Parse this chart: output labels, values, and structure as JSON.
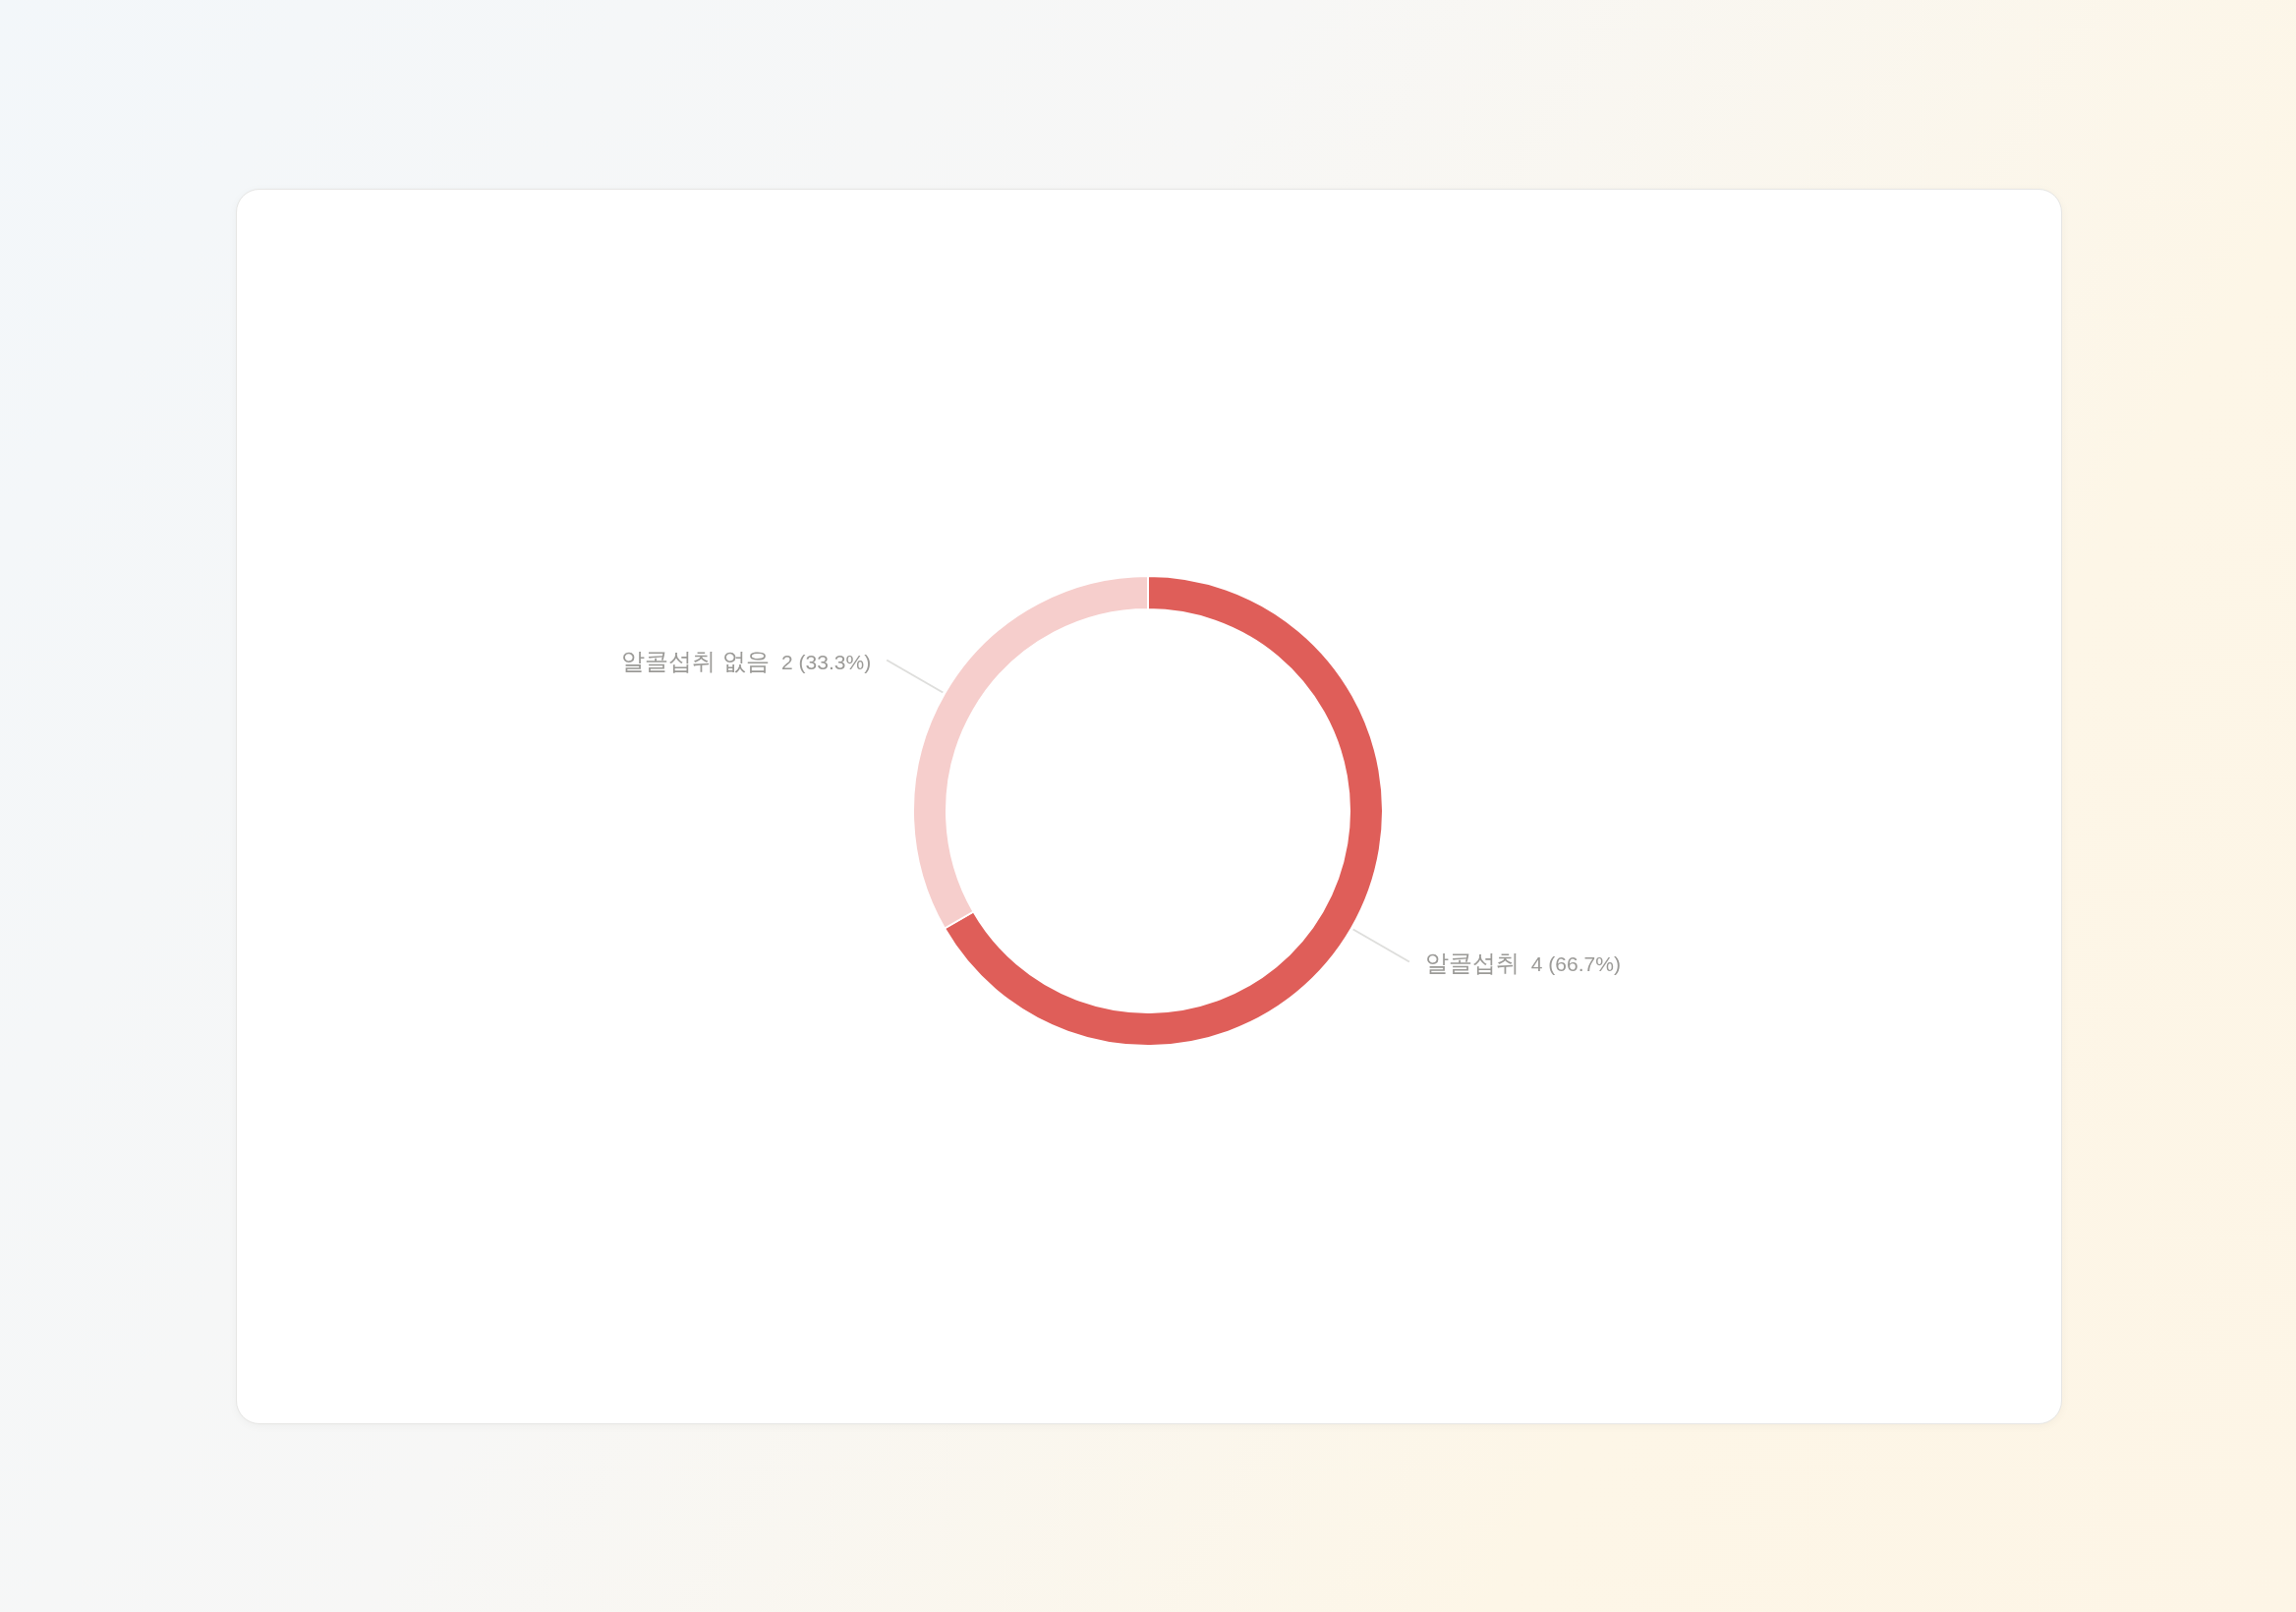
{
  "chart_data": {
    "type": "donut",
    "categories": [
      "알콜섭취",
      "알콜섭취 없음"
    ],
    "values": [
      4,
      2
    ],
    "colors": [
      "#df5e59",
      "#f6cecc"
    ],
    "value_labels": [
      "4 (66.7%)",
      "2 (33.3%)"
    ]
  }
}
